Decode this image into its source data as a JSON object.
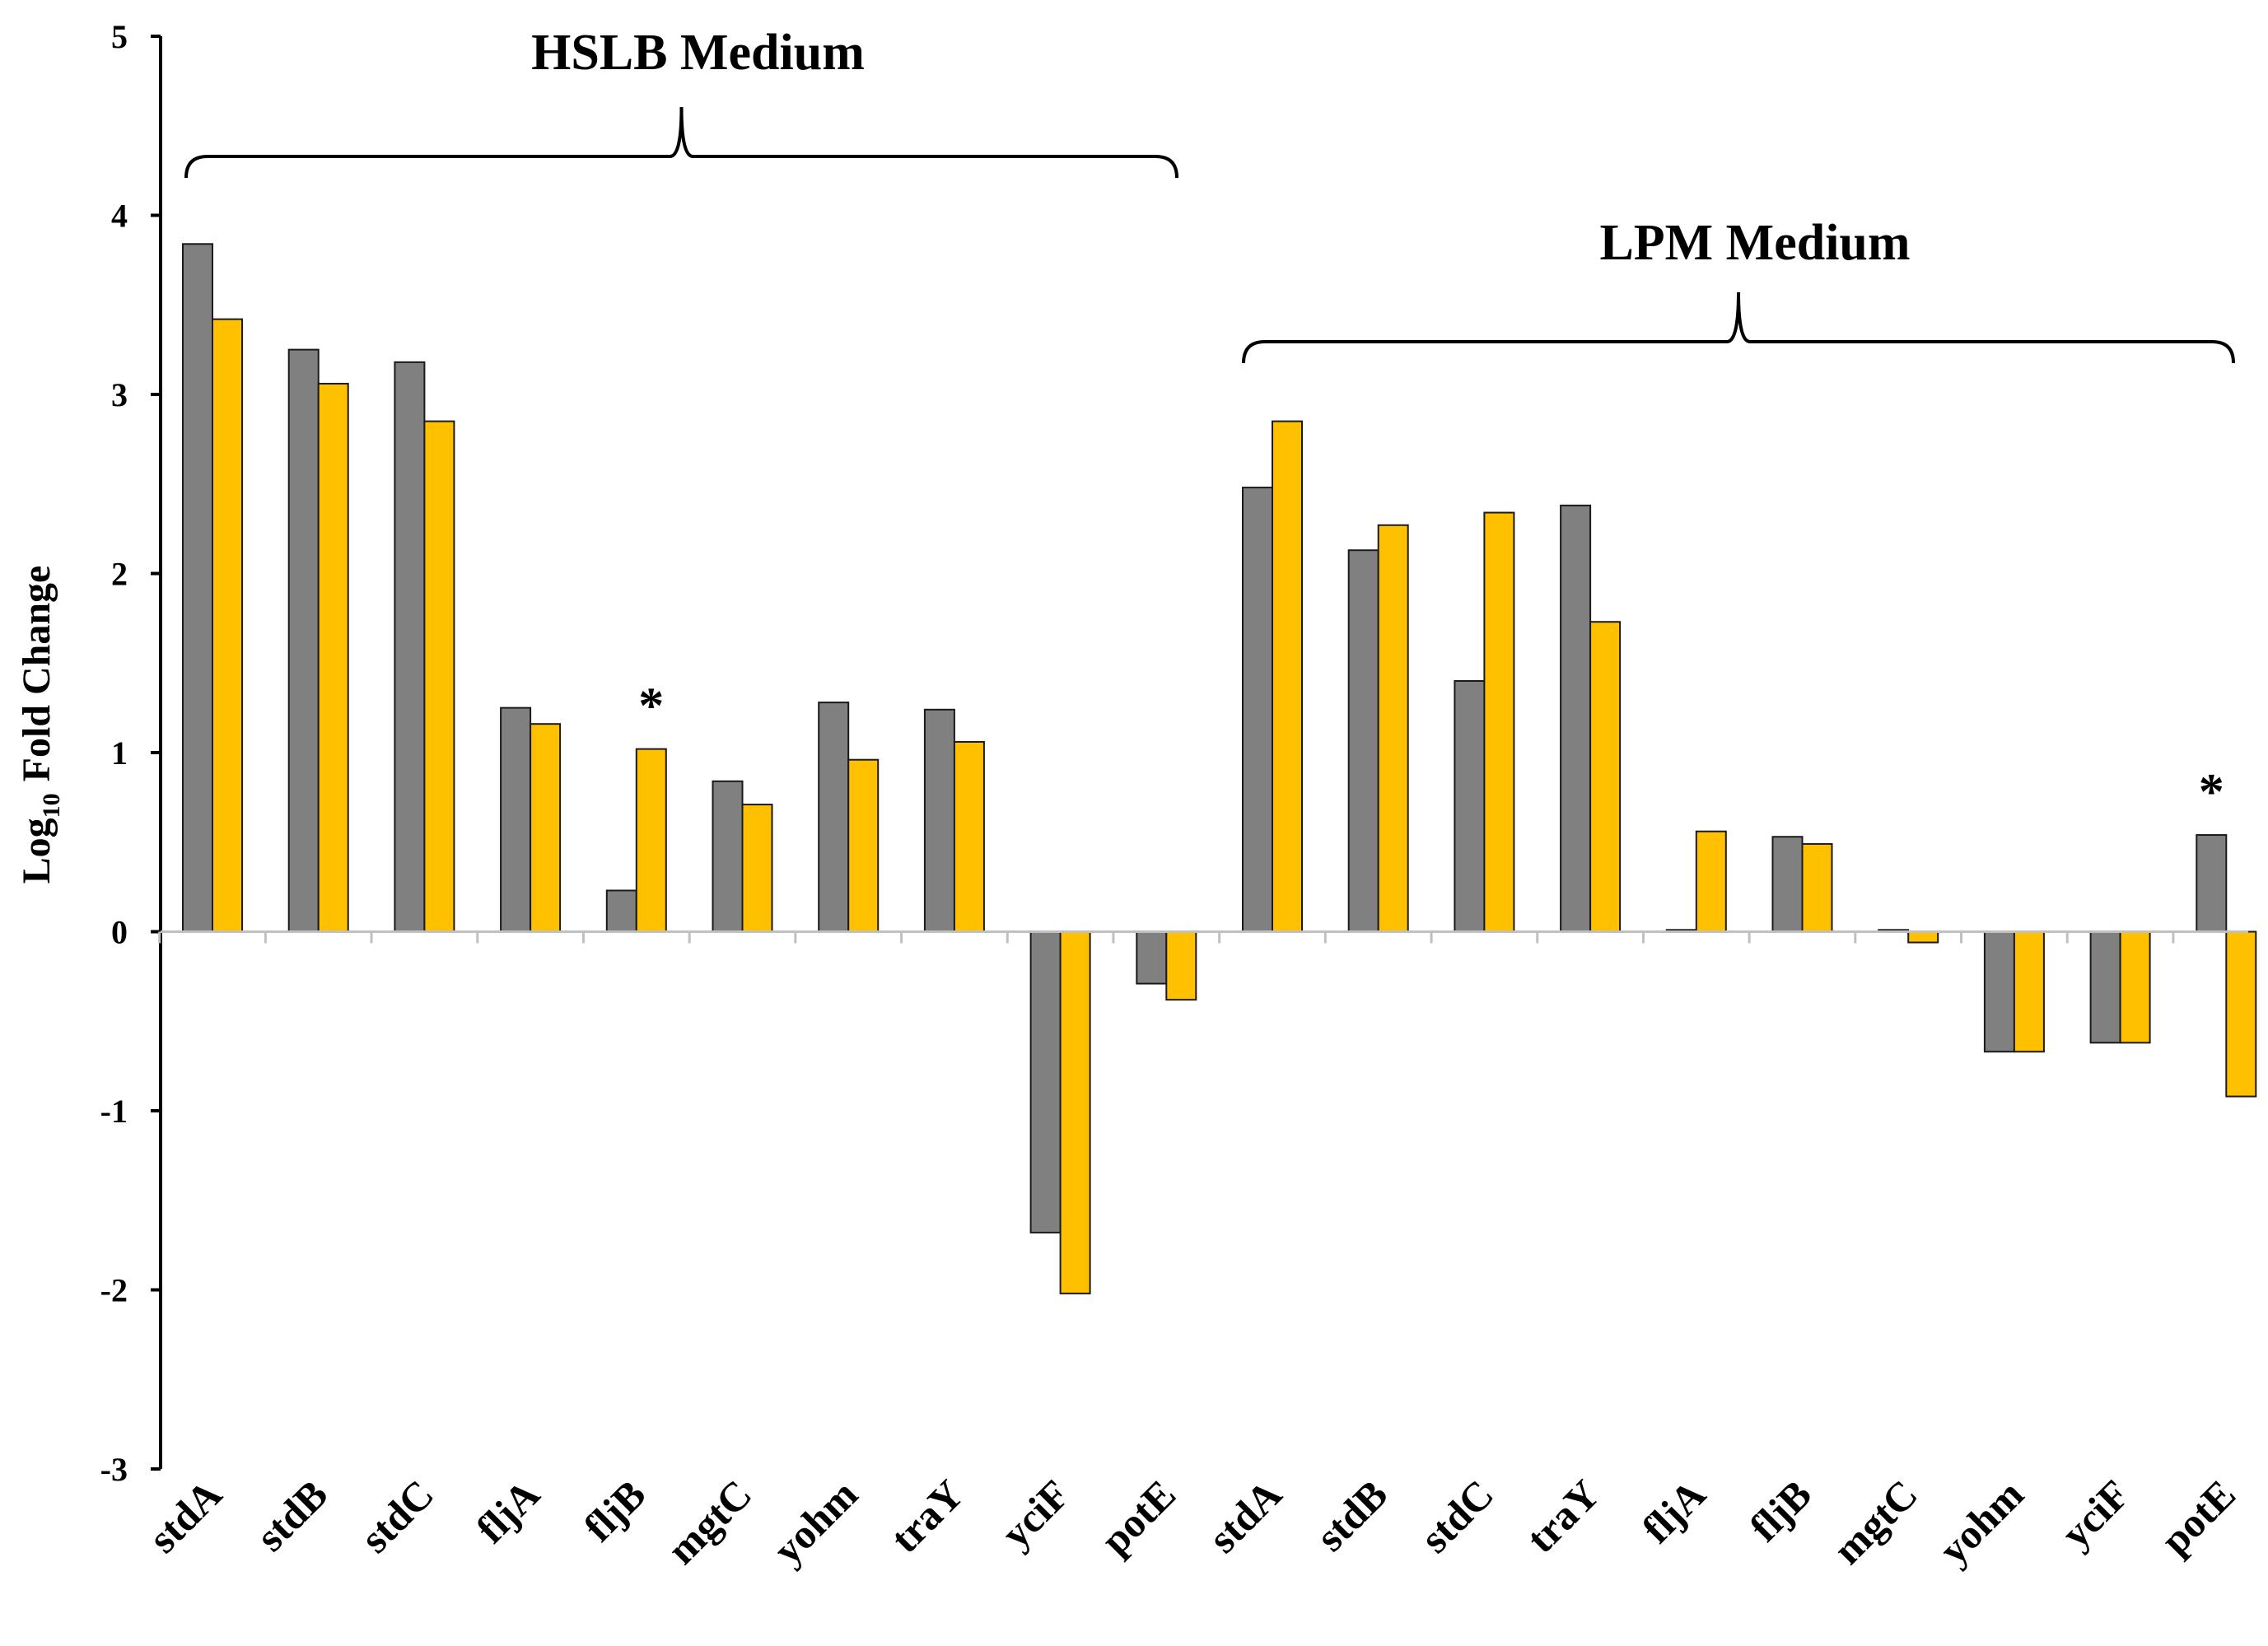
{
  "chart_data": {
    "type": "bar",
    "title": "",
    "xlabel": "",
    "ylabel": {
      "main": "Log",
      "subscript": "10",
      "rest": "Fold Change"
    },
    "ylim": [
      -3,
      5
    ],
    "yticks": [
      "-3",
      "-2",
      "-1",
      "0",
      "1",
      "2",
      "3",
      "4",
      "5"
    ],
    "grid": false,
    "legend": null,
    "categories": [
      "stdA",
      "stdB",
      "stdC",
      "fljA",
      "fljB",
      "mgtC",
      "yohm",
      "traY",
      "yciF",
      "potE",
      "stdA",
      "stdB",
      "stdC",
      "traY",
      "fljA",
      "fljB",
      "mgtC",
      "yohm",
      "yciF",
      "potE"
    ],
    "series": [
      {
        "name": "series-1",
        "color": "#808080",
        "values": [
          3.84,
          3.25,
          3.18,
          1.25,
          0.23,
          0.84,
          1.28,
          1.24,
          -1.68,
          -0.29,
          2.48,
          2.13,
          1.4,
          2.38,
          0.01,
          0.53,
          0.01,
          -0.67,
          -0.62,
          0.54
        ]
      },
      {
        "name": "series-2",
        "color": "#FFC000",
        "values": [
          3.42,
          3.06,
          2.85,
          1.16,
          1.02,
          0.71,
          0.96,
          1.06,
          -2.02,
          -0.38,
          2.85,
          2.27,
          2.34,
          1.73,
          0.56,
          0.49,
          -0.06,
          -0.67,
          -0.62,
          -0.92
        ]
      }
    ],
    "groups": [
      {
        "label": "HSLB Medium",
        "start": 0,
        "end": 9
      },
      {
        "label": "LPM Medium",
        "start": 10,
        "end": 19
      }
    ],
    "annotations": [
      {
        "text": "*",
        "category_index": 4,
        "series": 1
      },
      {
        "text": "*",
        "category_index": 19,
        "series": 0
      }
    ]
  }
}
